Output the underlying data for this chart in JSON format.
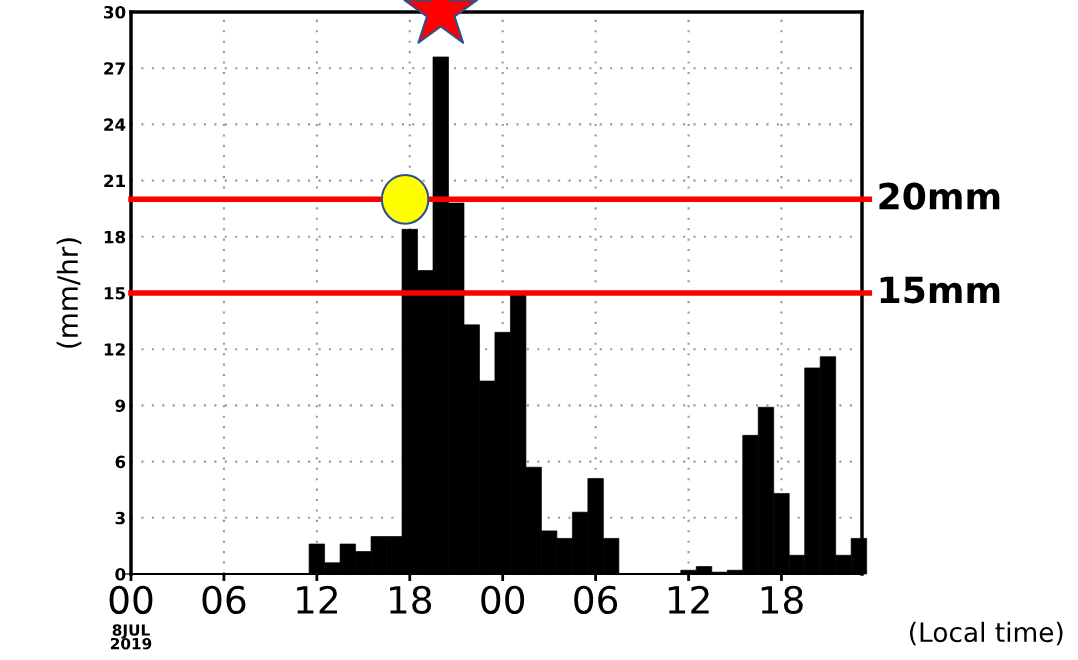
{
  "chart_data": {
    "type": "bar",
    "x": [
      "2019-07-08T00:00",
      "2019-07-08T01:00",
      "2019-07-08T02:00",
      "2019-07-08T03:00",
      "2019-07-08T04:00",
      "2019-07-08T05:00",
      "2019-07-08T06:00",
      "2019-07-08T07:00",
      "2019-07-08T08:00",
      "2019-07-08T09:00",
      "2019-07-08T10:00",
      "2019-07-08T11:00",
      "2019-07-08T12:00",
      "2019-07-08T13:00",
      "2019-07-08T14:00",
      "2019-07-08T15:00",
      "2019-07-08T16:00",
      "2019-07-08T17:00",
      "2019-07-08T18:00",
      "2019-07-08T19:00",
      "2019-07-08T20:00",
      "2019-07-08T21:00",
      "2019-07-08T22:00",
      "2019-07-08T23:00",
      "2019-07-09T00:00",
      "2019-07-09T01:00",
      "2019-07-09T02:00",
      "2019-07-09T03:00",
      "2019-07-09T04:00",
      "2019-07-09T05:00",
      "2019-07-09T06:00",
      "2019-07-09T07:00",
      "2019-07-09T08:00",
      "2019-07-09T09:00",
      "2019-07-09T10:00",
      "2019-07-09T11:00",
      "2019-07-09T12:00",
      "2019-07-09T13:00",
      "2019-07-09T14:00",
      "2019-07-09T15:00",
      "2019-07-09T16:00",
      "2019-07-09T17:00",
      "2019-07-09T18:00",
      "2019-07-09T19:00",
      "2019-07-09T20:00",
      "2019-07-09T21:00",
      "2019-07-09T22:00",
      "2019-07-09T23:00"
    ],
    "values": [
      0,
      0,
      0,
      0,
      0,
      0,
      0,
      0,
      0,
      0,
      0,
      0,
      1.6,
      0.6,
      1.6,
      1.2,
      2.0,
      2.0,
      18.4,
      16.2,
      27.6,
      19.8,
      13.3,
      10.3,
      12.9,
      14.9,
      5.7,
      2.3,
      1.9,
      3.3,
      5.1,
      1.9,
      0,
      0,
      0,
      0,
      0.2,
      0.4,
      0.1,
      0.2,
      7.4,
      8.9,
      4.3,
      1.0,
      11.0,
      11.6,
      1.0,
      1.9
    ],
    "color": "#000000",
    "xlim": [
      "2019-07-08T00:00",
      "2019-07-09T23:12"
    ],
    "xticks": [
      {
        "value": "2019-07-08T00:00",
        "label": "00"
      },
      {
        "value": "2019-07-08T06:00",
        "label": "06"
      },
      {
        "value": "2019-07-08T12:00",
        "label": "12"
      },
      {
        "value": "2019-07-08T18:00",
        "label": "18"
      },
      {
        "value": "2019-07-09T00:00",
        "label": "00"
      },
      {
        "value": "2019-07-09T06:00",
        "label": "06"
      },
      {
        "value": "2019-07-09T12:00",
        "label": "12"
      },
      {
        "value": "2019-07-09T18:00",
        "label": "18"
      }
    ],
    "ylim": [
      0,
      30
    ],
    "yticks": [
      0,
      3,
      6,
      9,
      12,
      15,
      18,
      21,
      24,
      27,
      30
    ],
    "xlabel": "(Local time)",
    "annotations": [
      "8JUL\n2019"
    ],
    "ylabel": "(mm/hr)",
    "grid": true,
    "ref_lines": [
      {
        "axis": "y",
        "value": 20,
        "label": "20mm",
        "color": "#ff0000"
      },
      {
        "axis": "y",
        "value": 15,
        "label": "15mm",
        "color": "#ff0000"
      }
    ]
  }
}
